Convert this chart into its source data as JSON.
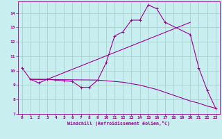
{
  "xlabel": "Windchill (Refroidissement éolien,°C)",
  "bg_color": "#c8eef0",
  "line_color": "#990099",
  "grid_color": "#a0cccc",
  "xlim": [
    -0.5,
    23.5
  ],
  "ylim": [
    7,
    14.8
  ],
  "xticks": [
    0,
    1,
    2,
    3,
    4,
    5,
    6,
    7,
    8,
    9,
    10,
    11,
    12,
    13,
    14,
    15,
    16,
    17,
    18,
    19,
    20,
    21,
    22,
    23
  ],
  "yticks": [
    7,
    8,
    9,
    10,
    11,
    12,
    13,
    14
  ],
  "line1_x": [
    0,
    1,
    2,
    3,
    4,
    5,
    6,
    7,
    8,
    9,
    10,
    11,
    12,
    13,
    14,
    15,
    16,
    17,
    20,
    21,
    22,
    23
  ],
  "line1_y": [
    10.2,
    9.4,
    9.15,
    9.4,
    9.35,
    9.3,
    9.25,
    8.85,
    8.85,
    9.35,
    10.55,
    12.4,
    12.7,
    13.5,
    13.5,
    14.55,
    14.3,
    13.35,
    12.5,
    10.2,
    8.65,
    7.4
  ],
  "line2_x": [
    1,
    3,
    20
  ],
  "line2_y": [
    9.4,
    9.4,
    13.35
  ],
  "line3_x": [
    1,
    9,
    10,
    11,
    12,
    13,
    14,
    15,
    16,
    17,
    18,
    19,
    20,
    21,
    22,
    23
  ],
  "line3_y": [
    9.4,
    9.35,
    9.3,
    9.25,
    9.2,
    9.1,
    9.0,
    8.85,
    8.7,
    8.5,
    8.3,
    8.1,
    7.9,
    7.75,
    7.55,
    7.4
  ]
}
